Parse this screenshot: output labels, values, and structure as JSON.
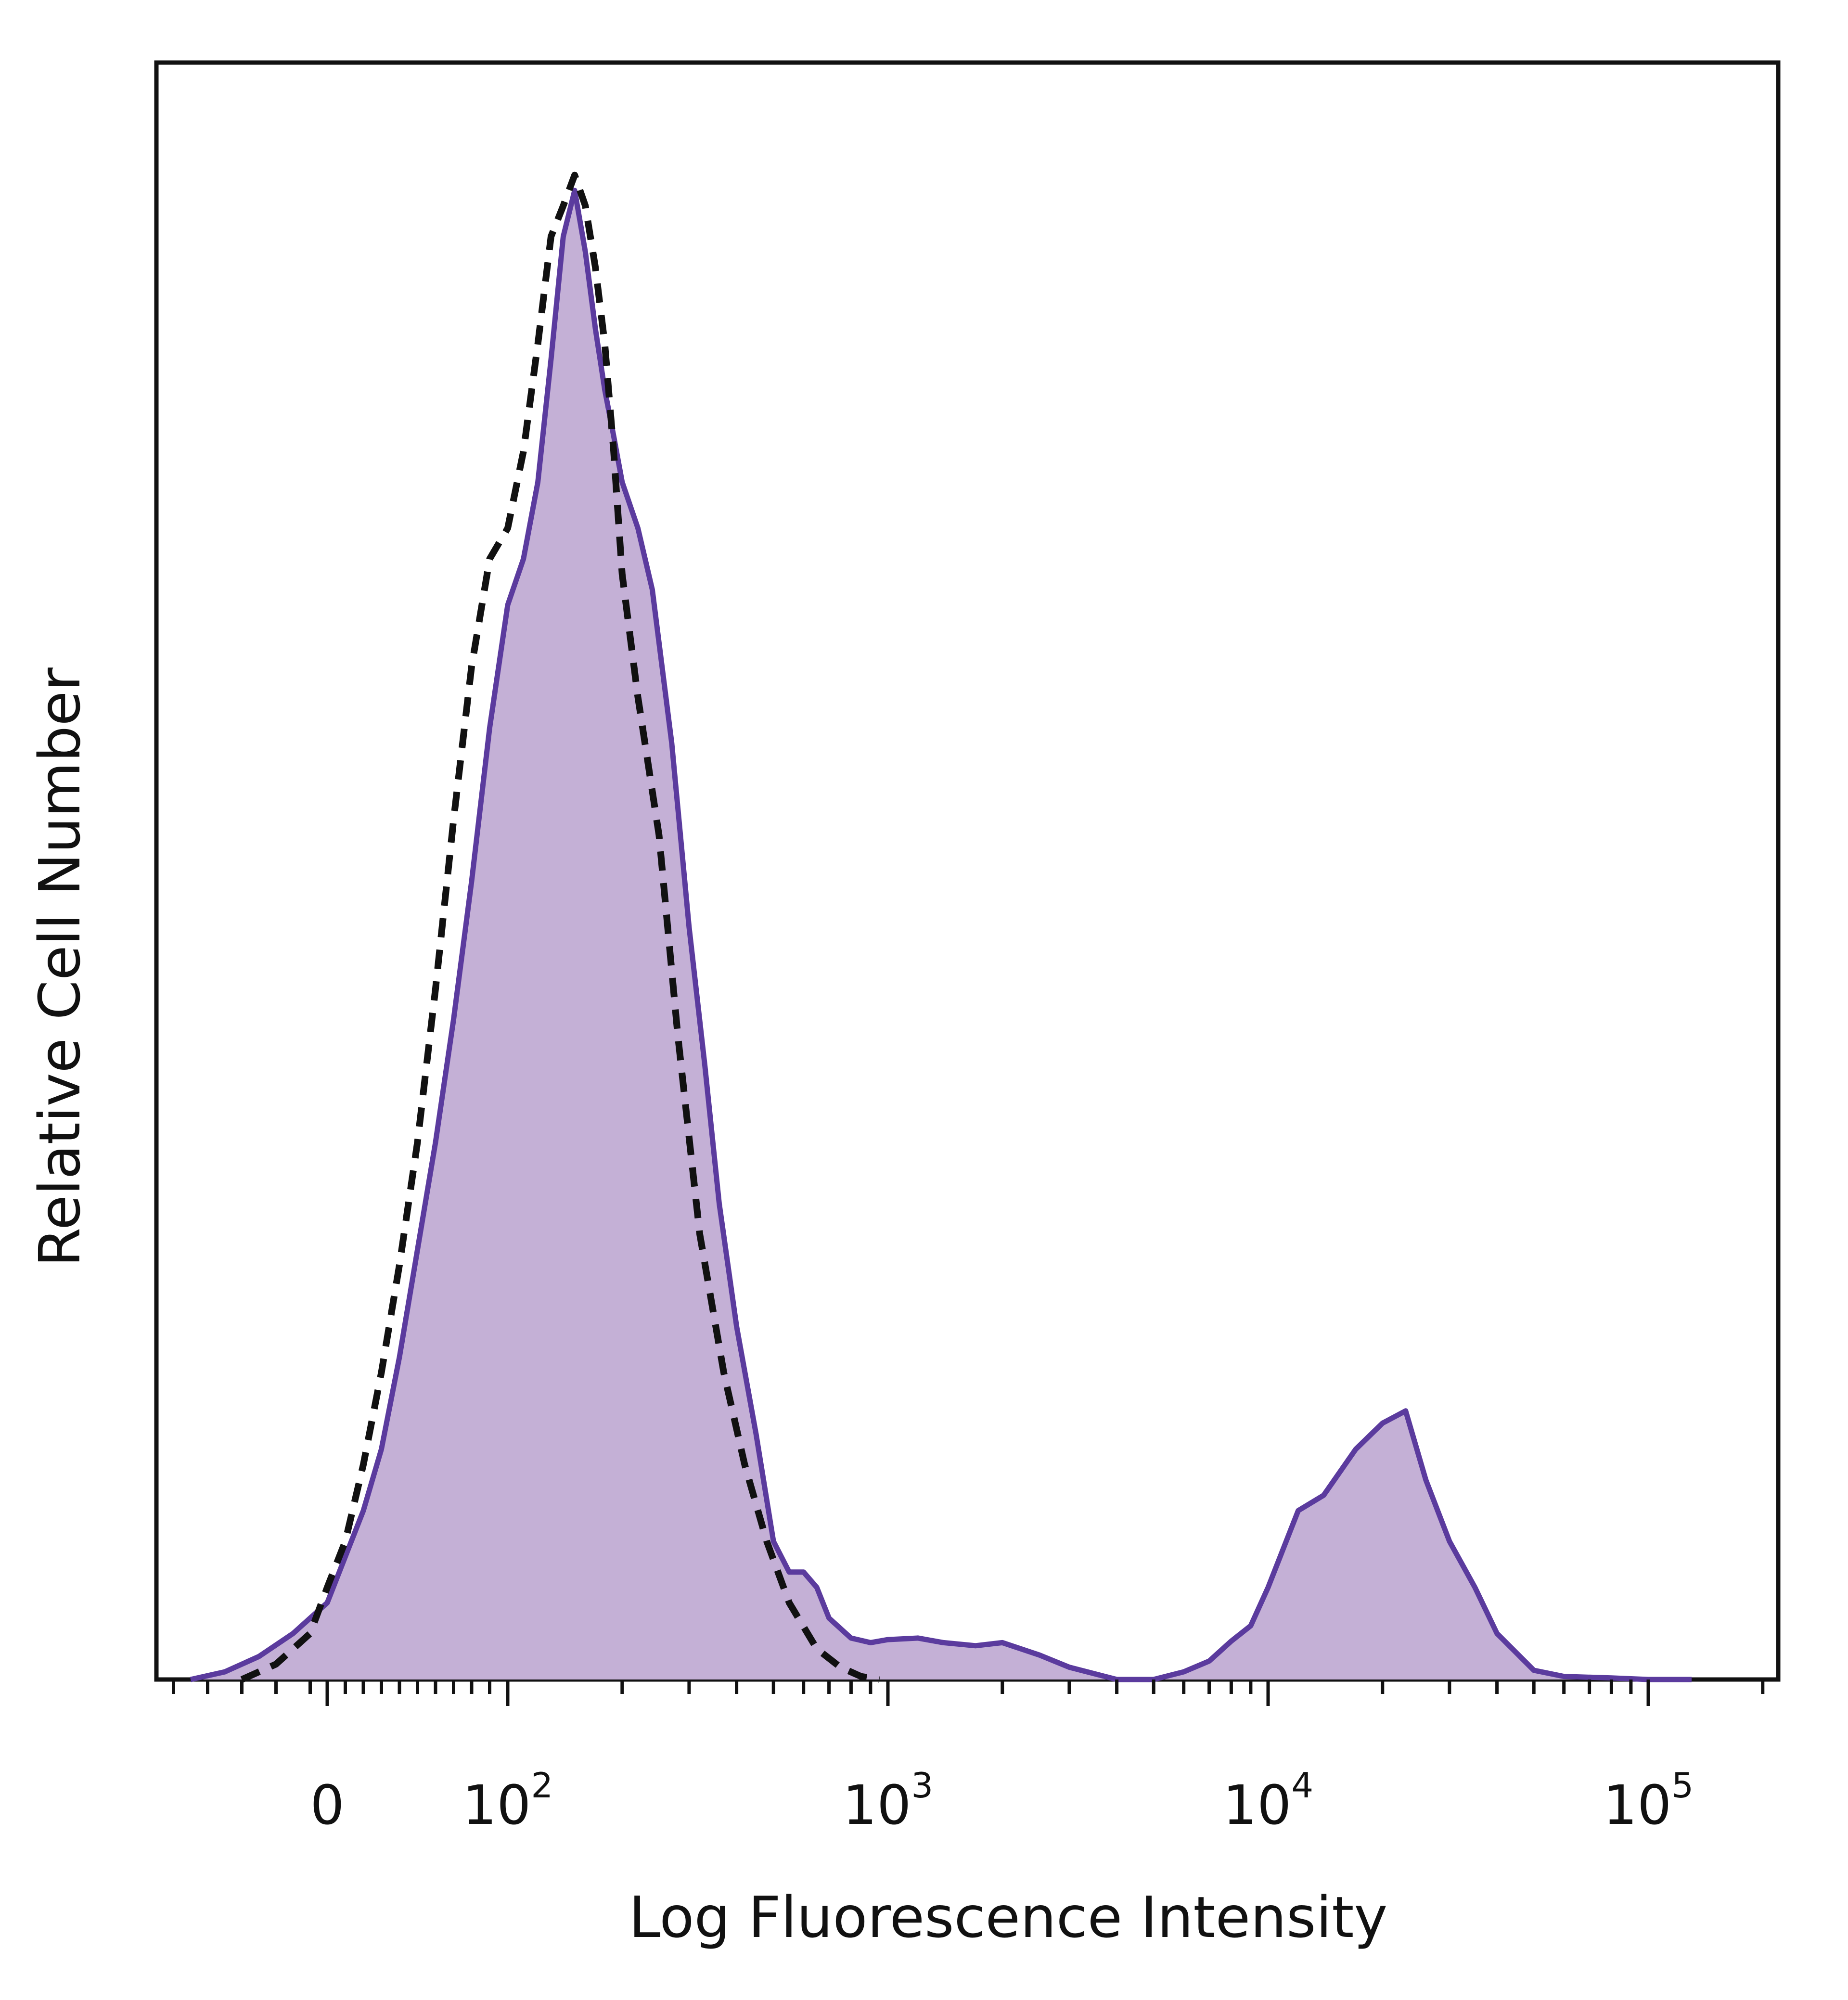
{
  "chart_data": {
    "type": "area",
    "title": "",
    "xlabel": "Log Fluorescence Intensity",
    "ylabel": "Relative Cell Number",
    "x_scale": "biexponential",
    "xlim": [
      -100,
      250000
    ],
    "ylim": [
      0,
      100
    ],
    "grid": false,
    "legend": "none",
    "x_ticks": [
      {
        "value": 0,
        "base": "0",
        "exp": ""
      },
      {
        "value": 100,
        "base": "10",
        "exp": "2"
      },
      {
        "value": 1000,
        "base": "10",
        "exp": "3"
      },
      {
        "value": 10000,
        "base": "10",
        "exp": "4"
      },
      {
        "value": 100000,
        "base": "10",
        "exp": "5"
      }
    ],
    "series": [
      {
        "style": "filled",
        "fill_color": "#c4b0d6",
        "line_color": "#5b3b9e",
        "x": [
          -80,
          -60,
          -40,
          -20,
          0,
          10,
          20,
          30,
          40,
          50,
          60,
          70,
          80,
          90,
          100,
          110,
          120,
          130,
          140,
          150,
          160,
          170,
          180,
          190,
          200,
          220,
          240,
          270,
          300,
          330,
          360,
          400,
          450,
          500,
          550,
          600,
          650,
          700,
          800,
          900,
          1000,
          1200,
          1400,
          1700,
          2000,
          2500,
          3000,
          4000,
          5000,
          6000,
          7000,
          8000,
          9000,
          10000,
          12000,
          14000,
          17000,
          20000,
          23000,
          26000,
          30000,
          35000,
          40000,
          50000,
          60000,
          80000,
          100000,
          130000
        ],
        "y": [
          0,
          0.5,
          1.5,
          3,
          5,
          8,
          11,
          15,
          21,
          28,
          35,
          43,
          52,
          62,
          70,
          73,
          78,
          86,
          94,
          97,
          93,
          88,
          84,
          81,
          78,
          75,
          71,
          61,
          49,
          40,
          31,
          23,
          16,
          9,
          7,
          7,
          6,
          4,
          2.7,
          2.4,
          2.6,
          2.7,
          2.4,
          2.2,
          2.4,
          1.6,
          0.8,
          0,
          0,
          0.5,
          1.2,
          2.5,
          3.5,
          6,
          11,
          12,
          15,
          16.7,
          17.5,
          13,
          9,
          6,
          3,
          0.6,
          0.2,
          0.1,
          0,
          0
        ]
      },
      {
        "style": "dashed",
        "line_color": "#111111",
        "x": [
          -50,
          -30,
          -10,
          0,
          10,
          20,
          30,
          40,
          50,
          60,
          70,
          80,
          90,
          100,
          110,
          120,
          130,
          140,
          150,
          160,
          170,
          180,
          190,
          200,
          220,
          250,
          280,
          320,
          370,
          420,
          480,
          550,
          650,
          750,
          850,
          950
        ],
        "y": [
          0,
          1,
          3,
          6,
          9,
          14,
          20,
          27,
          35,
          45,
          56,
          66,
          73,
          75,
          80,
          87,
          94,
          96,
          98,
          96,
          92,
          87,
          80,
          72,
          64,
          55,
          42,
          29,
          20,
          14,
          9,
          5,
          2,
          0.8,
          0.2,
          0
        ]
      }
    ]
  }
}
